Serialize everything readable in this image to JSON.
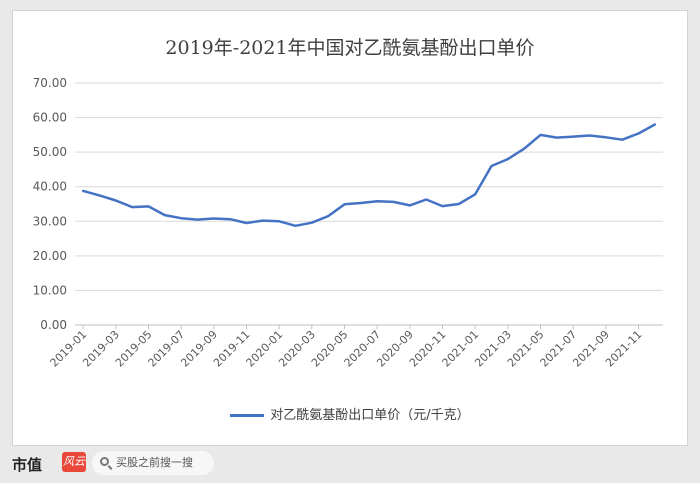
{
  "chart_data": {
    "type": "line",
    "title": "2019年-2021年中国对乙酰氨基酚出口单价",
    "series": [
      {
        "name": "对乙酰氨基酚出口单价（元/千克）",
        "color": "#4472c4",
        "values": [
          38.8,
          37.5,
          36.0,
          34.1,
          34.3,
          31.8,
          30.9,
          30.5,
          30.8,
          30.6,
          29.5,
          30.2,
          30.0,
          28.7,
          29.6,
          31.5,
          34.9,
          35.3,
          35.8,
          35.6,
          34.6,
          36.3,
          34.4,
          35.0,
          37.8,
          46.0,
          48.0,
          51.0,
          55.0,
          54.2,
          54.5,
          54.8,
          54.3,
          53.6,
          55.4,
          58.0
        ]
      }
    ],
    "x": [
      "2019-01",
      "2019-02",
      "2019-03",
      "2019-04",
      "2019-05",
      "2019-06",
      "2019-07",
      "2019-08",
      "2019-09",
      "2019-10",
      "2019-11",
      "2019-12",
      "2020-01",
      "2020-02",
      "2020-03",
      "2020-04",
      "2020-05",
      "2020-06",
      "2020-07",
      "2020-08",
      "2020-09",
      "2020-10",
      "2020-11",
      "2020-12",
      "2021-01",
      "2021-02",
      "2021-03",
      "2021-04",
      "2021-05",
      "2021-06",
      "2021-07",
      "2021-08",
      "2021-09",
      "2021-10",
      "2021-11",
      "2021-12"
    ],
    "x_tick_labels": [
      "2019-01",
      "2019-03",
      "2019-05",
      "2019-07",
      "2019-09",
      "2019-11",
      "2020-01",
      "2020-03",
      "2020-05",
      "2020-07",
      "2020-09",
      "2020-11",
      "2021-01",
      "2021-03",
      "2021-05",
      "2021-07",
      "2021-09",
      "2021-11"
    ],
    "y_tick_labels": [
      "0.00",
      "10.00",
      "20.00",
      "30.00",
      "40.00",
      "50.00",
      "60.00",
      "70.00"
    ],
    "ylim": [
      0,
      70
    ],
    "grid": true,
    "legend": "bottom"
  },
  "footer": {
    "brand": "市值",
    "brand_logo": "风云",
    "search_text": "买股之前搜一搜"
  }
}
